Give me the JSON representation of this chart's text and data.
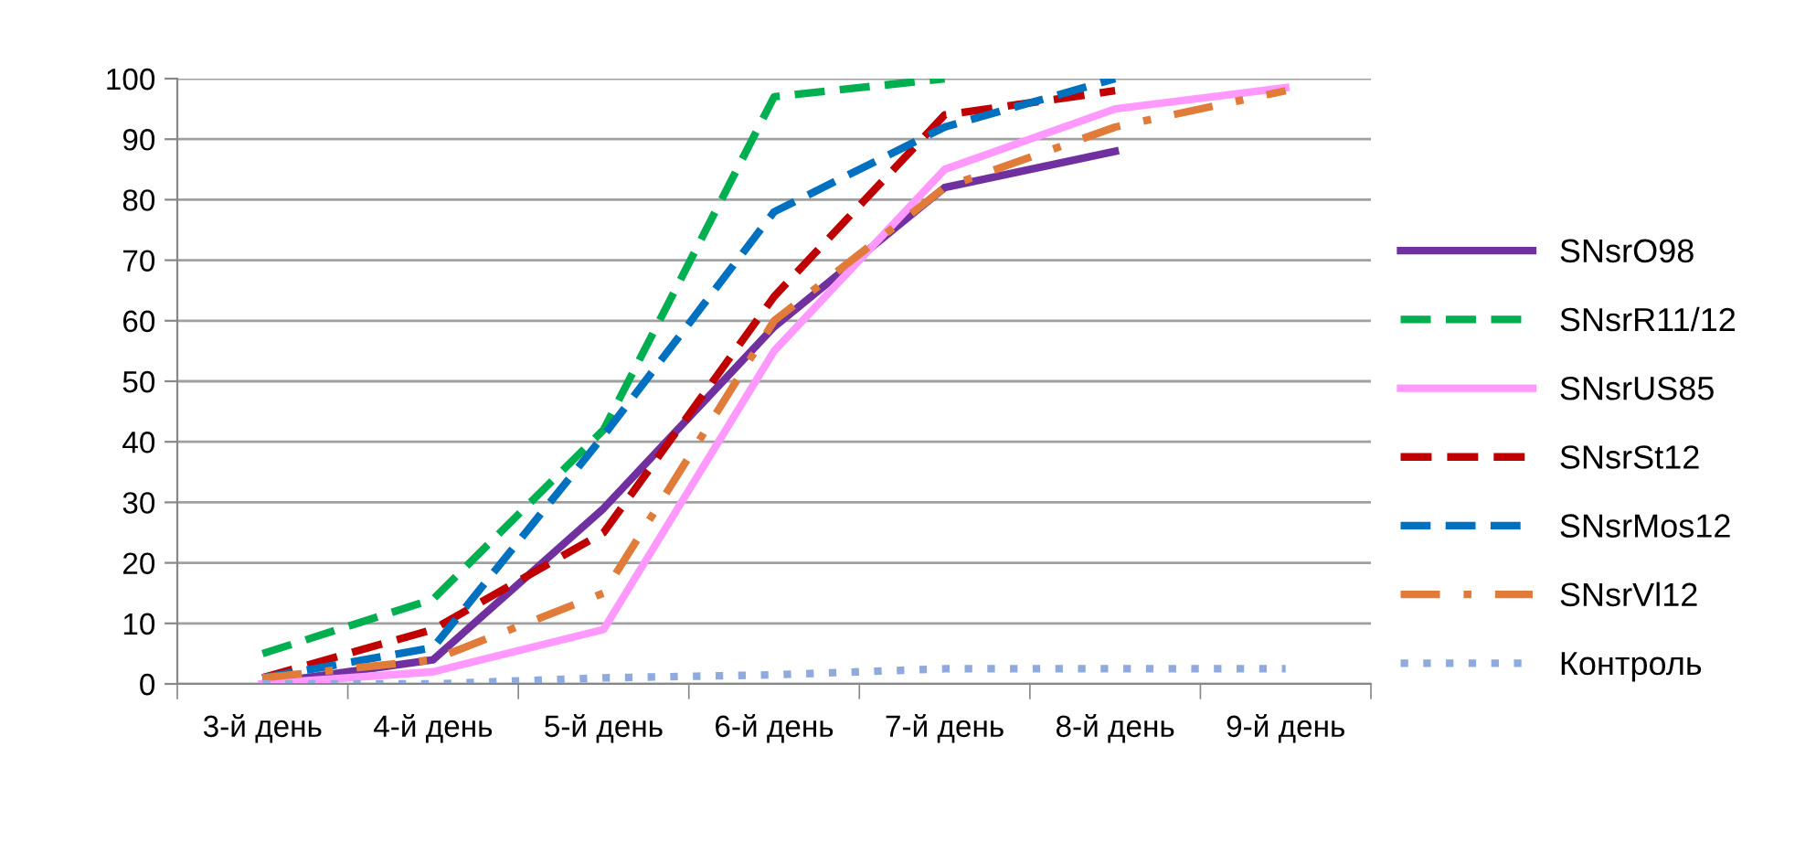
{
  "chart_data": {
    "type": "line",
    "categories": [
      "3-й день",
      "4-й день",
      "5-й день",
      "6-й день",
      "7-й день",
      "8-й день",
      "9-й день"
    ],
    "series": [
      {
        "name": "SNsrO98",
        "color": "#7030a0",
        "line_style": "solid",
        "values": [
          0,
          4,
          29,
          59,
          82,
          88,
          null
        ]
      },
      {
        "name": "SNsrR11/12",
        "color": "#00b050",
        "line_style": "dashed",
        "values": [
          5,
          14,
          42,
          97,
          100,
          null,
          null
        ]
      },
      {
        "name": "SNsrUS85",
        "color": "#ff99ff",
        "line_style": "solid",
        "values": [
          0,
          2,
          9,
          55,
          85,
          95,
          98.5
        ]
      },
      {
        "name": "SNsrSt12",
        "color": "#c00000",
        "line_style": "dashed",
        "values": [
          1,
          9,
          25,
          64,
          94,
          98,
          null
        ]
      },
      {
        "name": "SNsrMos12",
        "color": "#0070c0",
        "line_style": "dashed",
        "values": [
          1,
          6,
          41,
          78,
          92,
          100,
          null
        ]
      },
      {
        "name": "SNsrVl12",
        "color": "#e07b39",
        "line_style": "dashdot",
        "values": [
          1,
          4,
          15,
          60,
          82,
          92,
          98
        ]
      },
      {
        "name": "Контроль",
        "color": "#8faadc",
        "line_style": "dotted",
        "values": [
          0,
          0,
          1,
          1.5,
          2.5,
          2.5,
          2.5
        ]
      }
    ],
    "ylim": [
      0,
      100
    ],
    "yticks": [
      0,
      10,
      20,
      30,
      40,
      50,
      60,
      70,
      80,
      90,
      100
    ],
    "grid": "y",
    "legend": "right",
    "marker": "none"
  }
}
